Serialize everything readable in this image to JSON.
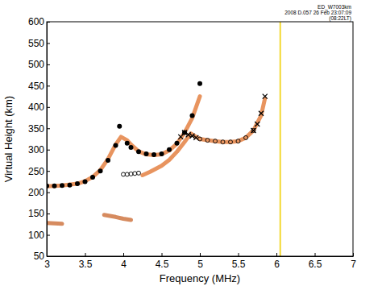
{
  "chart_data": {
    "type": "scatter",
    "x_label": "Frequency (MHz)",
    "y_label": "Virtual Height (km)",
    "annotations": [
      "ED_W7003km",
      "2008 D.057 26 Feb 23:07:09",
      "(08:22LT)"
    ],
    "xlim": [
      3,
      7
    ],
    "xticks": [
      3,
      3.5,
      4,
      4.5,
      5,
      5.5,
      6,
      6.5,
      7
    ],
    "ylim": [
      50,
      600
    ],
    "yticks": [
      50,
      100,
      150,
      200,
      250,
      300,
      350,
      400,
      450,
      500,
      550,
      600
    ],
    "grid": false,
    "series": [
      {
        "type": "line",
        "color": "#e0702a",
        "line_style": "solid",
        "x": [
          3.0,
          3.2,
          3.4,
          3.5,
          3.6,
          3.7,
          3.8,
          3.9,
          3.97,
          4.05,
          4.1,
          4.2,
          4.3,
          4.4,
          4.5,
          4.6,
          4.7,
          4.8,
          4.9,
          5.0
        ],
        "values": [
          214,
          216,
          220,
          226,
          236,
          252,
          278,
          312,
          330,
          322,
          312,
          296,
          289,
          287,
          289,
          298,
          314,
          340,
          374,
          425
        ]
      },
      {
        "type": "line",
        "color": "#e0702a",
        "line_style": "solid",
        "x": [
          4.25,
          4.35,
          4.5,
          4.6,
          4.7,
          4.8,
          4.88,
          4.95,
          5.0,
          5.1,
          5.2,
          5.3,
          5.4,
          5.5,
          5.6,
          5.7,
          5.8,
          5.85
        ],
        "values": [
          240,
          248,
          262,
          276,
          295,
          318,
          338,
          330,
          325,
          322,
          320,
          318,
          318,
          320,
          328,
          345,
          380,
          420
        ]
      },
      {
        "type": "line",
        "color": "#c8642a",
        "line_style": "solid",
        "x": [
          3.0,
          3.1,
          3.2,
          null,
          3.75,
          3.9,
          4.0,
          4.1
        ],
        "values": [
          128,
          127,
          126,
          null,
          147,
          142,
          138,
          135
        ]
      },
      {
        "type": "line",
        "color": "#f0d000",
        "line_style": "solid",
        "x": [
          6.05,
          6.05
        ],
        "values": [
          50,
          600
        ]
      },
      {
        "type": "scatter",
        "color": "#000000",
        "marker": "circle",
        "x": [
          3.0,
          3.1,
          3.2,
          3.3,
          3.4,
          3.5,
          3.6,
          3.7,
          3.8,
          3.9,
          3.95,
          4.05,
          4.1,
          4.2,
          4.3,
          4.4,
          4.5,
          4.6,
          4.7,
          4.8,
          4.9,
          5.0
        ],
        "values": [
          215,
          215,
          216,
          217,
          220,
          225,
          235,
          250,
          275,
          310,
          355,
          315,
          305,
          295,
          290,
          288,
          290,
          300,
          315,
          340,
          380,
          455
        ]
      },
      {
        "type": "scatter",
        "color": "#000000",
        "marker": "x",
        "x": [
          4.75,
          4.8,
          4.85,
          4.9,
          4.95,
          5.7,
          5.75,
          5.8,
          5.85
        ],
        "values": [
          330,
          340,
          335,
          332,
          328,
          345,
          360,
          385,
          425
        ]
      },
      {
        "type": "scatter",
        "color": "#000000",
        "marker": "open_circle",
        "x": [
          4.0,
          4.05,
          4.1,
          4.15,
          4.2,
          5.0,
          5.1,
          5.2,
          5.3,
          5.4,
          5.5,
          5.6,
          5.7
        ],
        "values": [
          242,
          242,
          243,
          244,
          245,
          325,
          322,
          320,
          318,
          318,
          320,
          328,
          345
        ]
      }
    ]
  }
}
